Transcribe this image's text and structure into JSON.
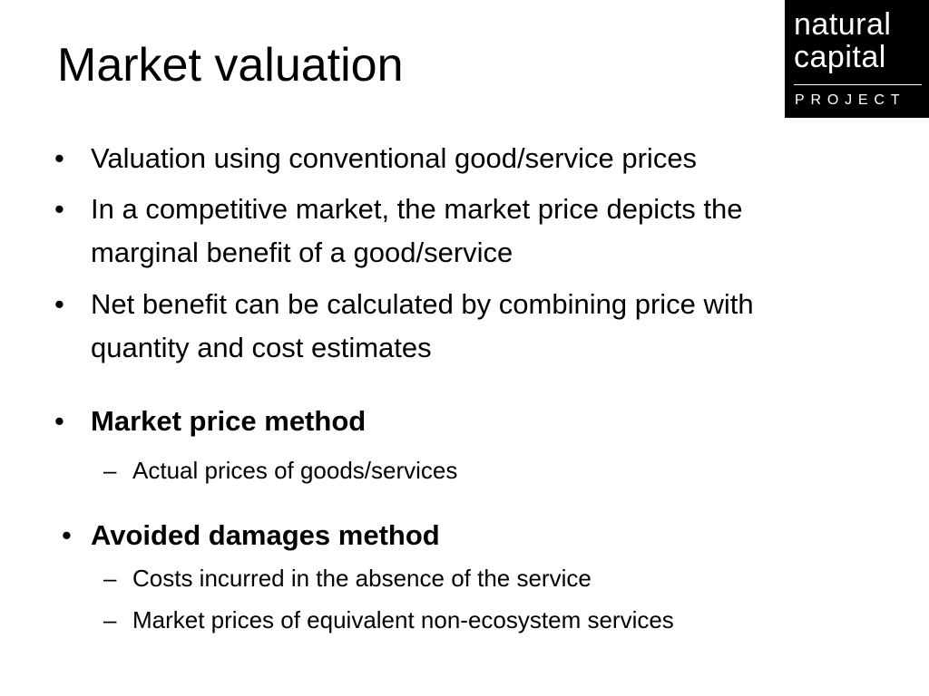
{
  "slide": {
    "title": "Market valuation",
    "logo": {
      "line1": "natural",
      "line2": "capital",
      "line3": "PROJECT"
    },
    "bullet_glyph": "•",
    "dash_glyph": "–",
    "bullets": [
      {
        "lines": [
          "Valuation using conventional good/service prices"
        ]
      },
      {
        "lines": [
          "In a competitive market, the market price depicts the",
          "marginal benefit of a good/service"
        ]
      },
      {
        "lines": [
          "Net benefit can be calculated by combining price with",
          "quantity and cost estimates"
        ]
      }
    ],
    "methods": [
      {
        "name": "Market price method",
        "subitems": [
          "Actual prices of goods/services"
        ]
      },
      {
        "name": "Avoided damages method",
        "subitems": [
          "Costs incurred in the absence of the service",
          "Market prices of equivalent non-ecosystem services"
        ]
      }
    ]
  }
}
